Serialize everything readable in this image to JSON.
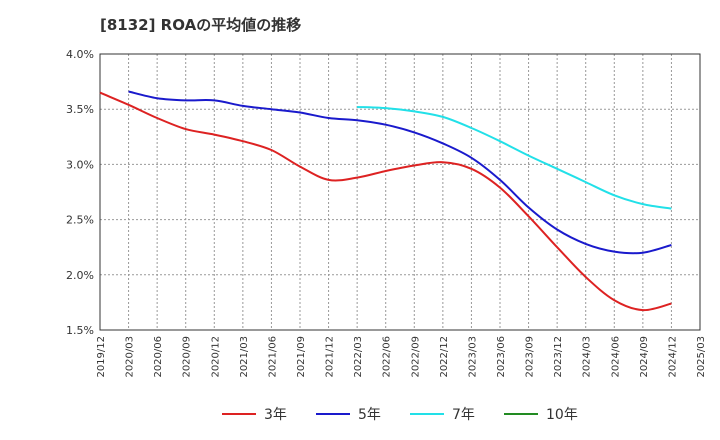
{
  "chart_data": {
    "type": "line",
    "title": "[8132]  ROAの平均値の推移",
    "xlabel": "",
    "ylabel": "",
    "x": [
      "2019/12",
      "2020/03",
      "2020/06",
      "2020/09",
      "2020/12",
      "2021/03",
      "2021/06",
      "2021/09",
      "2021/12",
      "2022/03",
      "2022/06",
      "2022/09",
      "2022/12",
      "2023/03",
      "2023/06",
      "2023/09",
      "2023/12",
      "2024/03",
      "2024/06",
      "2024/09",
      "2024/12",
      "2025/03"
    ],
    "y_ticks": [
      "1.5%",
      "2.0%",
      "2.5%",
      "3.0%",
      "3.5%",
      "4.0%"
    ],
    "ylim": [
      1.5,
      4.0
    ],
    "grid": true,
    "legend_position": "bottom",
    "series": [
      {
        "name": "3年",
        "color": "#dd2222",
        "values": [
          3.65,
          3.54,
          3.42,
          3.32,
          3.27,
          3.21,
          3.13,
          2.98,
          2.86,
          2.88,
          2.94,
          2.99,
          3.02,
          2.96,
          2.79,
          2.53,
          2.25,
          1.98,
          1.77,
          1.68,
          1.74,
          null
        ]
      },
      {
        "name": "5年",
        "color": "#1a1acc",
        "values": [
          null,
          3.66,
          3.6,
          3.58,
          3.58,
          3.53,
          3.5,
          3.47,
          3.42,
          3.4,
          3.36,
          3.29,
          3.19,
          3.06,
          2.86,
          2.61,
          2.41,
          2.28,
          2.21,
          2.2,
          2.27,
          null
        ]
      },
      {
        "name": "7年",
        "color": "#22e0e8",
        "values": [
          null,
          null,
          null,
          null,
          null,
          null,
          null,
          null,
          null,
          3.52,
          3.51,
          3.48,
          3.43,
          3.33,
          3.21,
          3.08,
          2.96,
          2.84,
          2.72,
          2.64,
          2.6,
          null
        ]
      },
      {
        "name": "10年",
        "color": "#228b22",
        "values": [
          null,
          null,
          null,
          null,
          null,
          null,
          null,
          null,
          null,
          null,
          null,
          null,
          null,
          null,
          null,
          null,
          null,
          null,
          null,
          null,
          null,
          null
        ]
      }
    ]
  }
}
